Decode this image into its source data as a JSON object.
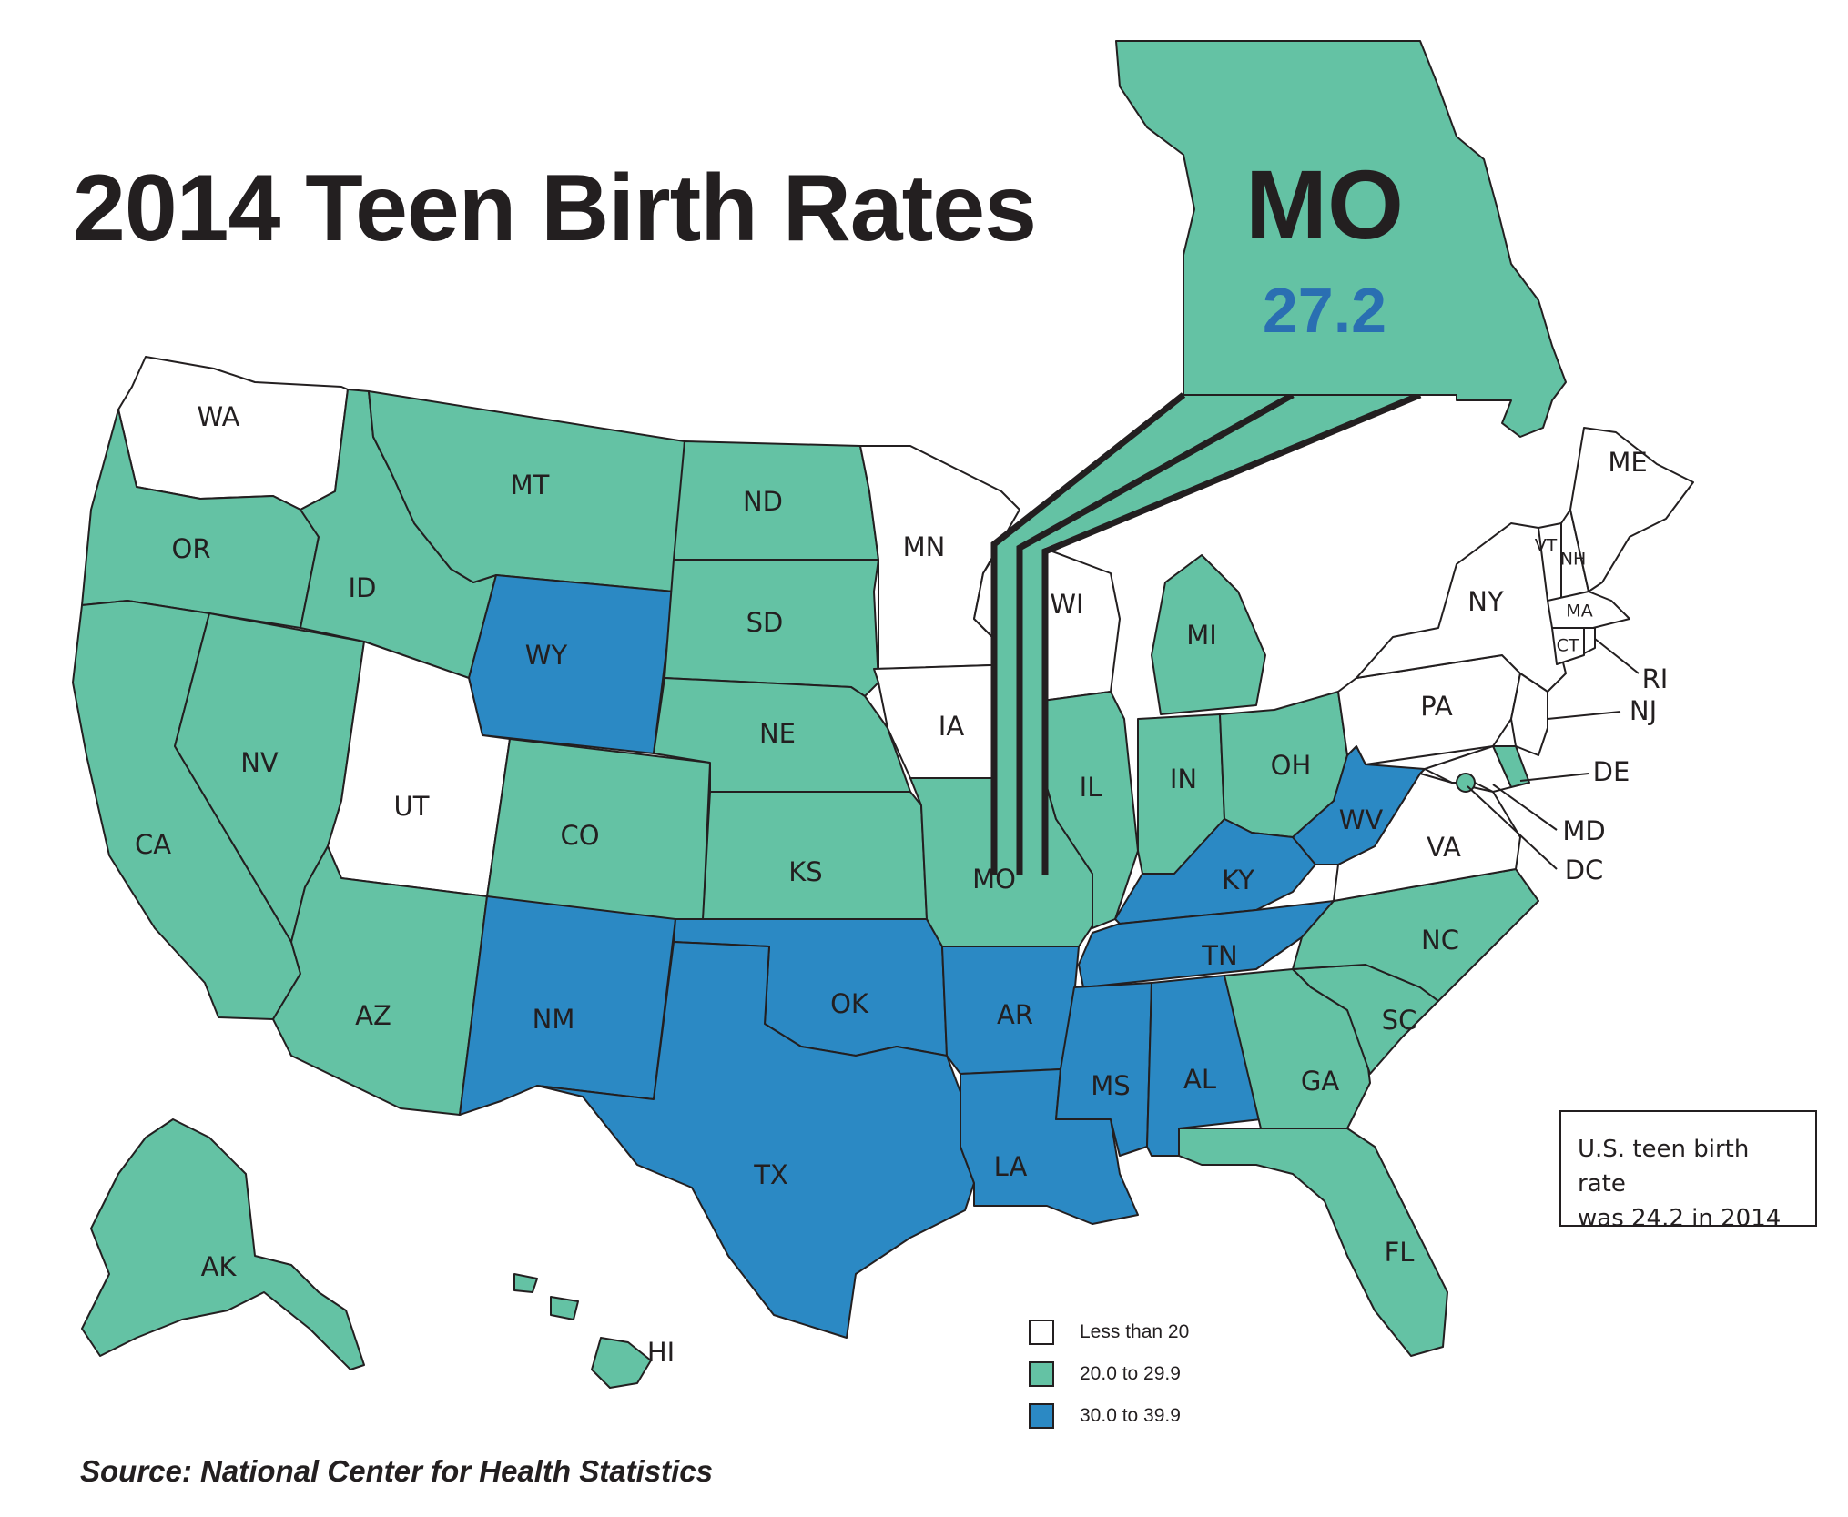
{
  "title": "2014 Teen Birth Rates",
  "source": "Source: National Center for Health Statistics",
  "note": {
    "line1": "U.S. teen birth rate",
    "line2": "was 24.2 in 2014"
  },
  "callout": {
    "state": "MO",
    "value": "27.2",
    "value_color": "#2a6fb2"
  },
  "legend": {
    "items": [
      {
        "label": "Less than 20",
        "color": "#ffffff"
      },
      {
        "label": "20.0 to 29.9",
        "color": "#64c2a4"
      },
      {
        "label": "30.0 to 39.9",
        "color": "#2b89c4"
      }
    ]
  },
  "colors": {
    "low": "#ffffff",
    "mid": "#64c2a4",
    "high": "#2b89c4",
    "stroke": "#231f20"
  },
  "states": {
    "WA": "low",
    "OR": "mid",
    "CA": "mid",
    "NV": "mid",
    "ID": "mid",
    "MT": "mid",
    "WY": "high",
    "UT": "low",
    "CO": "mid",
    "AZ": "mid",
    "NM": "high",
    "ND": "mid",
    "SD": "mid",
    "NE": "mid",
    "KS": "mid",
    "OK": "high",
    "TX": "high",
    "MN": "low",
    "IA": "low",
    "MO": "mid",
    "AR": "high",
    "LA": "high",
    "WI": "low",
    "IL": "mid",
    "MI": "mid",
    "IN": "mid",
    "OH": "mid",
    "KY": "high",
    "TN": "high",
    "MS": "high",
    "AL": "high",
    "GA": "mid",
    "FL": "mid",
    "SC": "mid",
    "NC": "mid",
    "VA": "low",
    "WV": "high",
    "PA": "low",
    "NY": "low",
    "NJ": "low",
    "DE": "mid",
    "MD": "low",
    "DC": "mid",
    "VT": "low",
    "NH": "low",
    "ME": "low",
    "MA": "low",
    "CT": "low",
    "RI": "low",
    "AK": "mid",
    "HI": "mid"
  },
  "labels": {
    "WA": "WA",
    "OR": "OR",
    "CA": "CA",
    "NV": "NV",
    "ID": "ID",
    "MT": "MT",
    "WY": "WY",
    "UT": "UT",
    "CO": "CO",
    "AZ": "AZ",
    "NM": "NM",
    "ND": "ND",
    "SD": "SD",
    "NE": "NE",
    "KS": "KS",
    "OK": "OK",
    "TX": "TX",
    "MN": "MN",
    "IA": "IA",
    "MO": "MO",
    "AR": "AR",
    "LA": "LA",
    "WI": "WI",
    "IL": "IL",
    "MI": "MI",
    "IN": "IN",
    "OH": "OH",
    "KY": "KY",
    "TN": "TN",
    "MS": "MS",
    "AL": "AL",
    "GA": "GA",
    "FL": "FL",
    "SC": "SC",
    "NC": "NC",
    "VA": "VA",
    "WV": "WV",
    "PA": "PA",
    "NY": "NY",
    "NJ": "NJ",
    "DE": "DE",
    "MD": "MD",
    "DC": "DC",
    "VT": "VT",
    "NH": "NH",
    "ME": "ME",
    "MA": "MA",
    "CT": "CT",
    "RI": "RI",
    "AK": "AK",
    "HI": "HI"
  }
}
